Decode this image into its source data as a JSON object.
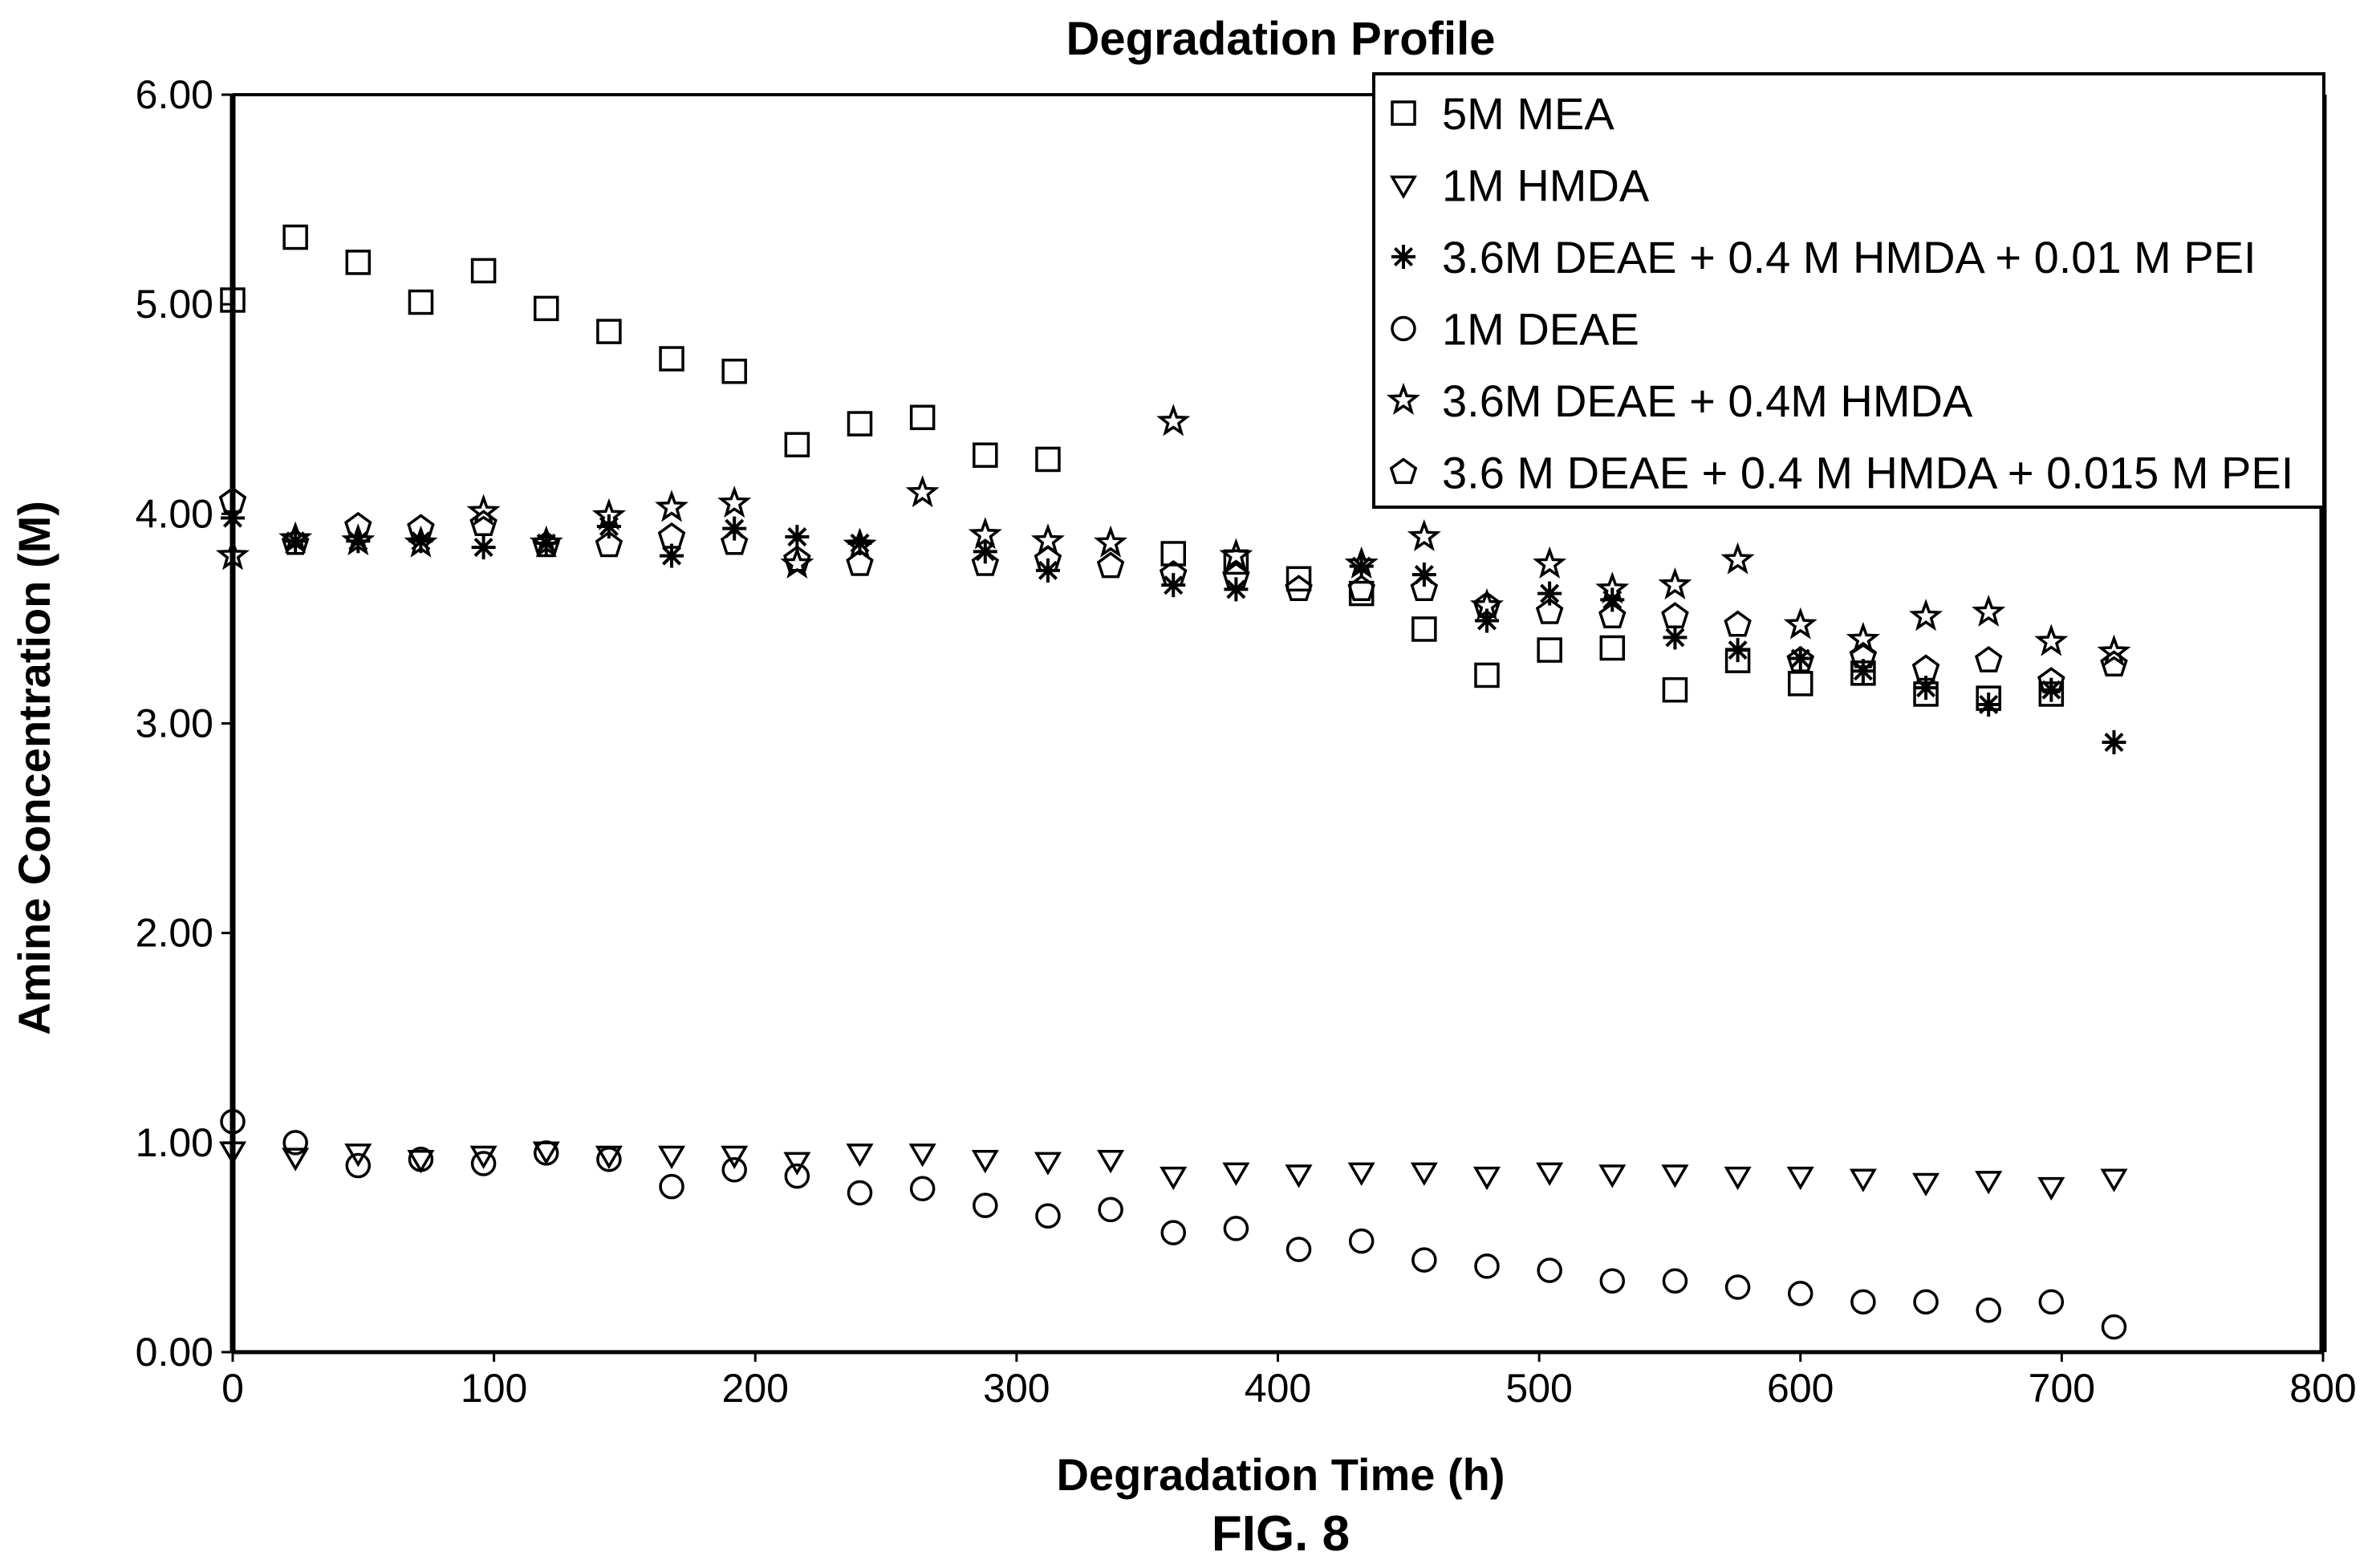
{
  "figure_label": "FIG. 8",
  "chart_data": {
    "type": "scatter",
    "title": "Degradation Profile",
    "xlabel": "Degradation Time (h)",
    "ylabel": "Amine Concentration (M)",
    "xlim": [
      0,
      800
    ],
    "ylim": [
      0,
      6
    ],
    "x_ticks": [
      "0",
      "100",
      "200",
      "300",
      "400",
      "500",
      "600",
      "700",
      "800"
    ],
    "y_ticks": [
      "0.00",
      "1.00",
      "2.00",
      "3.00",
      "4.00",
      "5.00",
      "6.00"
    ],
    "grid": false,
    "legend_position": "top-right",
    "series": [
      {
        "name": "5M MEA",
        "marker": "square",
        "points": [
          [
            0,
            5.02
          ],
          [
            24,
            5.32
          ],
          [
            48,
            5.2
          ],
          [
            72,
            5.01
          ],
          [
            96,
            5.16
          ],
          [
            120,
            4.98
          ],
          [
            144,
            4.87
          ],
          [
            168,
            4.74
          ],
          [
            192,
            4.68
          ],
          [
            216,
            4.33
          ],
          [
            240,
            4.43
          ],
          [
            264,
            4.46
          ],
          [
            288,
            4.28
          ],
          [
            312,
            4.26
          ],
          [
            360,
            3.81
          ],
          [
            384,
            3.77
          ],
          [
            408,
            3.69
          ],
          [
            432,
            3.62
          ],
          [
            456,
            3.45
          ],
          [
            480,
            3.23
          ],
          [
            504,
            3.35
          ],
          [
            528,
            3.36
          ],
          [
            552,
            3.16
          ],
          [
            576,
            3.3
          ],
          [
            600,
            3.19
          ],
          [
            624,
            3.24
          ],
          [
            648,
            3.14
          ],
          [
            672,
            3.12
          ],
          [
            696,
            3.14
          ]
        ]
      },
      {
        "name": "1M HMDA",
        "marker": "triangle-down",
        "points": [
          [
            0,
            0.96
          ],
          [
            24,
            0.93
          ],
          [
            48,
            0.95
          ],
          [
            72,
            0.92
          ],
          [
            96,
            0.94
          ],
          [
            120,
            0.96
          ],
          [
            144,
            0.94
          ],
          [
            168,
            0.94
          ],
          [
            192,
            0.94
          ],
          [
            216,
            0.91
          ],
          [
            240,
            0.95
          ],
          [
            264,
            0.95
          ],
          [
            288,
            0.92
          ],
          [
            312,
            0.91
          ],
          [
            336,
            0.92
          ],
          [
            360,
            0.84
          ],
          [
            384,
            0.86
          ],
          [
            408,
            0.85
          ],
          [
            432,
            0.86
          ],
          [
            456,
            0.86
          ],
          [
            480,
            0.84
          ],
          [
            504,
            0.86
          ],
          [
            528,
            0.85
          ],
          [
            552,
            0.85
          ],
          [
            576,
            0.84
          ],
          [
            600,
            0.84
          ],
          [
            624,
            0.83
          ],
          [
            648,
            0.81
          ],
          [
            672,
            0.82
          ],
          [
            696,
            0.79
          ],
          [
            720,
            0.83
          ]
        ]
      },
      {
        "name": "3.6M DEAE + 0.4 M HMDA + 0.01 M PEI",
        "marker": "asterisk",
        "points": [
          [
            0,
            3.98
          ],
          [
            24,
            3.87
          ],
          [
            48,
            3.87
          ],
          [
            72,
            3.87
          ],
          [
            96,
            3.84
          ],
          [
            120,
            3.86
          ],
          [
            144,
            3.94
          ],
          [
            168,
            3.8
          ],
          [
            192,
            3.93
          ],
          [
            216,
            3.89
          ],
          [
            240,
            3.86
          ],
          [
            288,
            3.82
          ],
          [
            312,
            3.73
          ],
          [
            360,
            3.66
          ],
          [
            384,
            3.64
          ],
          [
            432,
            3.75
          ],
          [
            456,
            3.71
          ],
          [
            480,
            3.49
          ],
          [
            504,
            3.62
          ],
          [
            528,
            3.59
          ],
          [
            552,
            3.41
          ],
          [
            576,
            3.35
          ],
          [
            600,
            3.31
          ],
          [
            624,
            3.25
          ],
          [
            648,
            3.17
          ],
          [
            672,
            3.09
          ],
          [
            696,
            3.16
          ],
          [
            720,
            2.91
          ]
        ]
      },
      {
        "name": "1M DEAE",
        "marker": "circle",
        "points": [
          [
            0,
            1.1
          ],
          [
            24,
            1.0
          ],
          [
            48,
            0.89
          ],
          [
            72,
            0.92
          ],
          [
            96,
            0.9
          ],
          [
            120,
            0.95
          ],
          [
            144,
            0.92
          ],
          [
            168,
            0.79
          ],
          [
            192,
            0.87
          ],
          [
            216,
            0.84
          ],
          [
            240,
            0.76
          ],
          [
            264,
            0.78
          ],
          [
            288,
            0.7
          ],
          [
            312,
            0.65
          ],
          [
            336,
            0.68
          ],
          [
            360,
            0.57
          ],
          [
            384,
            0.59
          ],
          [
            408,
            0.49
          ],
          [
            432,
            0.53
          ],
          [
            456,
            0.44
          ],
          [
            480,
            0.41
          ],
          [
            504,
            0.39
          ],
          [
            528,
            0.34
          ],
          [
            552,
            0.34
          ],
          [
            576,
            0.31
          ],
          [
            600,
            0.28
          ],
          [
            624,
            0.24
          ],
          [
            648,
            0.24
          ],
          [
            672,
            0.2
          ],
          [
            696,
            0.24
          ],
          [
            720,
            0.12
          ]
        ]
      },
      {
        "name": "3.6M DEAE + 0.4M HMDA",
        "marker": "star",
        "points": [
          [
            0,
            3.8
          ],
          [
            24,
            3.88
          ],
          [
            48,
            3.87
          ],
          [
            72,
            3.86
          ],
          [
            96,
            4.01
          ],
          [
            120,
            3.86
          ],
          [
            144,
            3.99
          ],
          [
            168,
            4.03
          ],
          [
            192,
            4.05
          ],
          [
            216,
            3.76
          ],
          [
            240,
            3.85
          ],
          [
            264,
            4.1
          ],
          [
            288,
            3.9
          ],
          [
            312,
            3.87
          ],
          [
            336,
            3.86
          ],
          [
            360,
            4.44
          ],
          [
            384,
            3.8
          ],
          [
            432,
            3.76
          ],
          [
            456,
            3.89
          ],
          [
            480,
            3.56
          ],
          [
            504,
            3.76
          ],
          [
            528,
            3.64
          ],
          [
            552,
            3.66
          ],
          [
            576,
            3.78
          ],
          [
            600,
            3.47
          ],
          [
            624,
            3.4
          ],
          [
            648,
            3.51
          ],
          [
            672,
            3.53
          ],
          [
            696,
            3.39
          ],
          [
            720,
            3.34
          ]
        ]
      },
      {
        "name": "3.6 M DEAE + 0.4 M HMDA + 0.015 M PEI",
        "marker": "pentagon",
        "points": [
          [
            0,
            4.06
          ],
          [
            24,
            3.86
          ],
          [
            48,
            3.94
          ],
          [
            72,
            3.93
          ],
          [
            96,
            3.95
          ],
          [
            120,
            3.85
          ],
          [
            144,
            3.85
          ],
          [
            168,
            3.89
          ],
          [
            192,
            3.86
          ],
          [
            216,
            3.78
          ],
          [
            240,
            3.76
          ],
          [
            288,
            3.76
          ],
          [
            312,
            3.78
          ],
          [
            336,
            3.75
          ],
          [
            360,
            3.71
          ],
          [
            384,
            3.7
          ],
          [
            408,
            3.64
          ],
          [
            432,
            3.64
          ],
          [
            456,
            3.64
          ],
          [
            480,
            3.56
          ],
          [
            504,
            3.53
          ],
          [
            528,
            3.51
          ],
          [
            552,
            3.51
          ],
          [
            576,
            3.47
          ],
          [
            600,
            3.3
          ],
          [
            624,
            3.32
          ],
          [
            648,
            3.26
          ],
          [
            672,
            3.3
          ],
          [
            696,
            3.2
          ],
          [
            720,
            3.28
          ]
        ]
      }
    ]
  }
}
